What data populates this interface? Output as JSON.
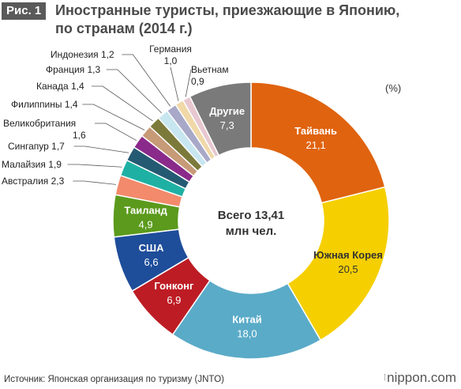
{
  "figure": {
    "badge": "Рис. 1",
    "title_line1": "Иностранные туристы, приезжающие в Японию,",
    "title_line2": "по странам (2014 г.)",
    "unit": "(%)",
    "source": "Источник: Японская организация по туризму (JNTO)",
    "brand": "nippon.com"
  },
  "chart_data": {
    "type": "pie",
    "donut": true,
    "center_label": [
      "Всего 13,41",
      "млн чел."
    ],
    "slices": [
      {
        "label": "Тайвань",
        "value": 21.1,
        "value_text": "21,1",
        "color": "#e0630f"
      },
      {
        "label": "Южная Корея",
        "value": 20.5,
        "value_text": "20,5",
        "color": "#f5cf00"
      },
      {
        "label": "Китай",
        "value": 18.0,
        "value_text": "18,0",
        "color": "#5aabc8"
      },
      {
        "label": "Гонконг",
        "value": 6.9,
        "value_text": "6,9",
        "color": "#bd1c24"
      },
      {
        "label": "США",
        "value": 6.6,
        "value_text": "6,6",
        "color": "#1e4d9a"
      },
      {
        "label": "Таиланд",
        "value": 4.9,
        "value_text": "4,9",
        "color": "#5b9a1c"
      },
      {
        "label": "Австралия",
        "value": 2.3,
        "value_text": "2,3",
        "color": "#f28a6b"
      },
      {
        "label": "Малайзия",
        "value": 1.9,
        "value_text": "1,9",
        "color": "#1fb0a4"
      },
      {
        "label": "Сингапур",
        "value": 1.7,
        "value_text": "1,7",
        "color": "#255a73"
      },
      {
        "label": "Великобритания",
        "value": 1.6,
        "value_text": "1,6",
        "color": "#8a2a8a"
      },
      {
        "label": "Филиппины",
        "value": 1.4,
        "value_text": "1,4",
        "color": "#c79a78"
      },
      {
        "label": "Канада",
        "value": 1.4,
        "value_text": "1,4",
        "color": "#7c7a3a"
      },
      {
        "label": "Франция",
        "value": 1.3,
        "value_text": "1,3",
        "color": "#c8e6f0"
      },
      {
        "label": "Индонезия",
        "value": 1.2,
        "value_text": "1,2",
        "color": "#a8a8c8"
      },
      {
        "label": "Германия",
        "value": 1.0,
        "value_text": "1,0",
        "color": "#f0d8a8"
      },
      {
        "label": "Вьетнам",
        "value": 0.9,
        "value_text": "0,9",
        "color": "#e8c8d0"
      },
      {
        "label": "Другие",
        "value": 7.3,
        "value_text": "7,3",
        "color": "#7a7a7a"
      }
    ]
  }
}
